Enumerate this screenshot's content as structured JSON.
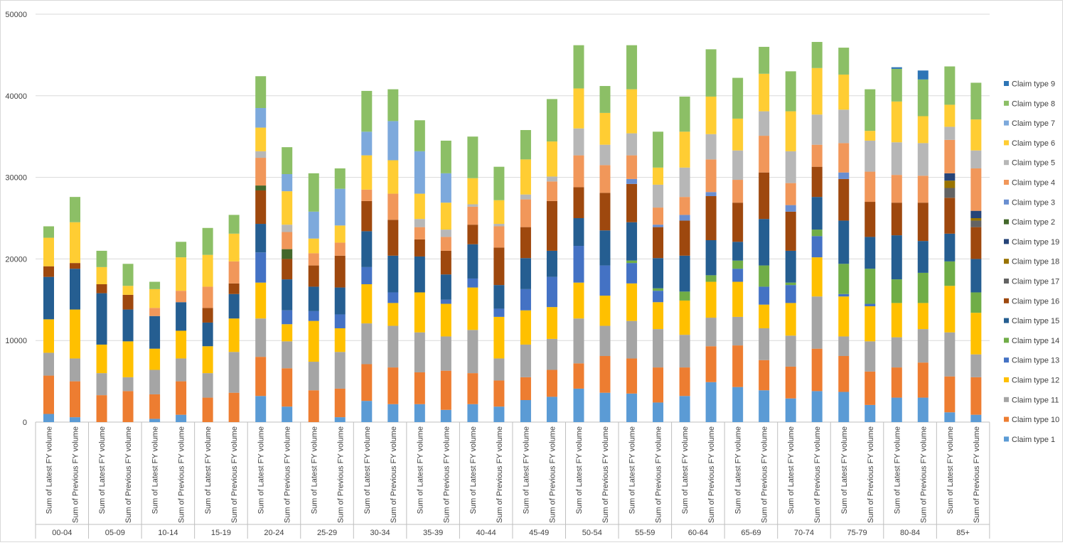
{
  "chart_data": {
    "type": "bar",
    "stacked": true,
    "title": "",
    "xlabel": "",
    "ylabel": "",
    "ylim": [
      0,
      50000
    ],
    "y_ticks": [
      0,
      10000,
      20000,
      30000,
      40000,
      50000
    ],
    "y_tick_labels": [
      "0",
      "10000",
      "20000",
      "30000",
      "40000",
      "50000"
    ],
    "grid": true,
    "legend_position": "right",
    "groups": [
      "00-04",
      "05-09",
      "10-14",
      "15-19",
      "20-24",
      "25-29",
      "30-34",
      "35-39",
      "40-44",
      "45-49",
      "50-54",
      "55-59",
      "60-64",
      "65-69",
      "70-74",
      "75-79",
      "80-84",
      "85+"
    ],
    "bar_labels": [
      "Sum of Latest FY volume",
      "Sum of Previous FY volume"
    ],
    "series": [
      {
        "name": "Claim type 1",
        "color": "#5b9bd5",
        "values": [
          1000,
          600,
          0,
          0,
          400,
          900,
          0,
          0,
          3200,
          1900,
          0,
          600,
          2600,
          2200,
          2200,
          1500,
          2200,
          1900,
          2700,
          3100,
          4100,
          3600,
          3500,
          2400,
          3200,
          4900,
          4300,
          3900,
          2900,
          3800,
          3700,
          2100,
          3000,
          3000,
          1200,
          900
        ]
      },
      {
        "name": "Claim type 10",
        "color": "#ed7d31",
        "values": [
          4700,
          4400,
          3300,
          3800,
          3000,
          4100,
          3000,
          3600,
          4800,
          4700,
          3900,
          3500,
          4500,
          4500,
          3900,
          4800,
          3800,
          3200,
          2800,
          3300,
          3100,
          4500,
          4300,
          4300,
          3500,
          4400,
          5100,
          3700,
          3900,
          5200,
          4400,
          4100,
          3700,
          4300,
          4400,
          4600
        ]
      },
      {
        "name": "Claim type 11",
        "color": "#a5a5a5",
        "values": [
          2800,
          2800,
          2700,
          1700,
          3000,
          2800,
          3000,
          5000,
          4700,
          3300,
          3500,
          4500,
          5000,
          5100,
          4900,
          4200,
          5300,
          2700,
          4000,
          3800,
          5500,
          3700,
          4600,
          4700,
          4000,
          3500,
          3500,
          3900,
          3800,
          6400,
          2400,
          3700,
          3700,
          4100,
          5400,
          2800
        ]
      },
      {
        "name": "Claim type 12",
        "color": "#ffc000",
        "values": [
          4100,
          6000,
          3500,
          4400,
          2600,
          3400,
          3300,
          4100,
          4400,
          2100,
          5000,
          2900,
          4800,
          2800,
          4900,
          4000,
          5200,
          5100,
          4200,
          3900,
          4400,
          3700,
          4600,
          3300,
          4200,
          4400,
          4300,
          2900,
          4000,
          4800,
          4900,
          4300,
          4200,
          3200,
          5700,
          5100
        ]
      },
      {
        "name": "Claim type 13",
        "color": "#4472c4",
        "values": [
          0,
          0,
          0,
          0,
          0,
          0,
          0,
          0,
          3700,
          1700,
          1200,
          1700,
          2100,
          1300,
          0,
          500,
          1100,
          1000,
          2600,
          3700,
          4500,
          3700,
          2500,
          1400,
          0,
          0,
          1600,
          2200,
          2200,
          2600,
          300,
          300,
          0,
          0,
          0,
          0
        ]
      },
      {
        "name": "Claim type 14",
        "color": "#70ad47",
        "values": [
          0,
          0,
          0,
          0,
          0,
          0,
          0,
          0,
          0,
          0,
          0,
          0,
          0,
          0,
          0,
          0,
          0,
          0,
          0,
          0,
          0,
          0,
          300,
          300,
          1100,
          800,
          1000,
          2600,
          300,
          800,
          3700,
          4300,
          2900,
          3700,
          3000,
          2500
        ]
      },
      {
        "name": "Claim type 15",
        "color": "#255e91",
        "values": [
          5200,
          5000,
          6300,
          3900,
          4000,
          3500,
          2900,
          3000,
          3500,
          3800,
          3000,
          3300,
          4400,
          4500,
          4400,
          3100,
          4200,
          2900,
          3800,
          3200,
          3400,
          4300,
          4700,
          3700,
          4400,
          4300,
          2300,
          5700,
          3900,
          4000,
          5300,
          3900,
          5400,
          3900,
          3400,
          4100
        ]
      },
      {
        "name": "Claim type 16",
        "color": "#9e480e",
        "values": [
          1300,
          700,
          1100,
          1800,
          0,
          0,
          1800,
          1300,
          4100,
          2500,
          2600,
          3900,
          3700,
          4400,
          2100,
          2900,
          2400,
          4600,
          3800,
          6100,
          3800,
          4600,
          4700,
          3800,
          4300,
          5400,
          4800,
          5700,
          4800,
          3700,
          5100,
          4300,
          4000,
          4700,
          4400,
          3900
        ]
      },
      {
        "name": "Claim type 17",
        "color": "#636363",
        "values": [
          0,
          0,
          0,
          0,
          0,
          0,
          0,
          0,
          0,
          0,
          0,
          0,
          0,
          0,
          0,
          0,
          0,
          0,
          0,
          0,
          0,
          0,
          0,
          0,
          0,
          0,
          0,
          0,
          0,
          0,
          0,
          0,
          0,
          0,
          1200,
          800
        ]
      },
      {
        "name": "Claim type 18",
        "color": "#997300",
        "values": [
          0,
          0,
          0,
          0,
          0,
          0,
          0,
          0,
          0,
          0,
          0,
          0,
          0,
          0,
          0,
          0,
          0,
          0,
          0,
          0,
          0,
          0,
          0,
          0,
          0,
          0,
          0,
          0,
          0,
          0,
          0,
          0,
          0,
          0,
          900,
          300
        ]
      },
      {
        "name": "Claim type 19",
        "color": "#264478",
        "values": [
          0,
          0,
          0,
          0,
          0,
          0,
          0,
          0,
          0,
          0,
          0,
          0,
          0,
          0,
          0,
          0,
          0,
          0,
          0,
          0,
          0,
          0,
          0,
          0,
          0,
          0,
          0,
          0,
          0,
          0,
          0,
          0,
          0,
          0,
          900,
          900
        ]
      },
      {
        "name": "Claim type 2",
        "color": "#43682b",
        "values": [
          0,
          0,
          0,
          0,
          0,
          0,
          0,
          0,
          600,
          1200,
          0,
          0,
          0,
          0,
          0,
          0,
          0,
          0,
          0,
          0,
          0,
          0,
          0,
          0,
          0,
          0,
          0,
          0,
          0,
          0,
          0,
          0,
          0,
          0,
          0,
          0
        ]
      },
      {
        "name": "Claim type 3",
        "color": "#698ed0",
        "values": [
          0,
          0,
          0,
          0,
          0,
          0,
          0,
          0,
          0,
          0,
          0,
          0,
          0,
          0,
          0,
          0,
          0,
          0,
          0,
          0,
          0,
          0,
          600,
          300,
          700,
          500,
          0,
          0,
          800,
          0,
          800,
          0,
          0,
          0,
          0,
          0
        ]
      },
      {
        "name": "Claim type 4",
        "color": "#f1975a",
        "values": [
          0,
          0,
          0,
          0,
          1000,
          1400,
          2600,
          2700,
          3400,
          2100,
          1500,
          1600,
          1400,
          3200,
          1500,
          1700,
          2200,
          2600,
          3400,
          2400,
          3900,
          3400,
          2900,
          2100,
          2200,
          4000,
          2800,
          4500,
          2700,
          2700,
          3600,
          3700,
          3400,
          3300,
          4100,
          5200
        ]
      },
      {
        "name": "Claim type 5",
        "color": "#b7b7b7",
        "values": [
          0,
          0,
          0,
          0,
          0,
          0,
          0,
          0,
          800,
          900,
          0,
          0,
          0,
          0,
          1000,
          900,
          300,
          300,
          600,
          600,
          3300,
          2500,
          2700,
          2800,
          3600,
          3100,
          3600,
          3000,
          3900,
          3700,
          4100,
          3800,
          4000,
          4000,
          1600,
          2200
        ]
      },
      {
        "name": "Claim type 6",
        "color": "#ffcd33",
        "values": [
          3500,
          5000,
          2100,
          1100,
          2300,
          4100,
          3900,
          3400,
          2900,
          4100,
          1800,
          2100,
          4200,
          4100,
          3100,
          3300,
          3200,
          2900,
          4300,
          4300,
          4900,
          3900,
          5400,
          2100,
          4400,
          4600,
          3900,
          4600,
          4900,
          5700,
          4300,
          1200,
          5000,
          3300,
          2700,
          3800
        ]
      },
      {
        "name": "Claim type 7",
        "color": "#7da9dc",
        "values": [
          0,
          0,
          0,
          0,
          0,
          0,
          0,
          0,
          2400,
          2100,
          3300,
          4500,
          2900,
          4800,
          5200,
          3600,
          0,
          0,
          0,
          0,
          0,
          0,
          0,
          0,
          0,
          0,
          0,
          0,
          0,
          0,
          0,
          0,
          0,
          0,
          0,
          0
        ]
      },
      {
        "name": "Claim type 8",
        "color": "#8cbf66",
        "values": [
          1400,
          3100,
          2000,
          2700,
          900,
          1900,
          3300,
          2300,
          3900,
          3300,
          4700,
          2500,
          5000,
          3900,
          3800,
          4000,
          5100,
          4100,
          3600,
          5200,
          5300,
          3300,
          5400,
          4400,
          4300,
          5800,
          5000,
          3300,
          4900,
          3200,
          3300,
          5100,
          4000,
          4500,
          4700,
          4500
        ]
      },
      {
        "name": "Claim type 9",
        "color": "#2e75b6",
        "values": [
          0,
          0,
          0,
          0,
          0,
          0,
          0,
          0,
          0,
          0,
          0,
          0,
          0,
          0,
          0,
          0,
          0,
          0,
          0,
          0,
          0,
          0,
          0,
          0,
          0,
          0,
          0,
          0,
          0,
          0,
          0,
          0,
          200,
          1100,
          0,
          0
        ]
      }
    ],
    "legend_order": [
      "Claim type 9",
      "Claim type 8",
      "Claim type 7",
      "Claim type 6",
      "Claim type 5",
      "Claim type 4",
      "Claim type 3",
      "Claim type 2",
      "Claim type 19",
      "Claim type 18",
      "Claim type 17",
      "Claim type 16",
      "Claim type 15",
      "Claim type 14",
      "Claim type 13",
      "Claim type 12",
      "Claim type 11",
      "Claim type 10",
      "Claim type 1"
    ]
  }
}
